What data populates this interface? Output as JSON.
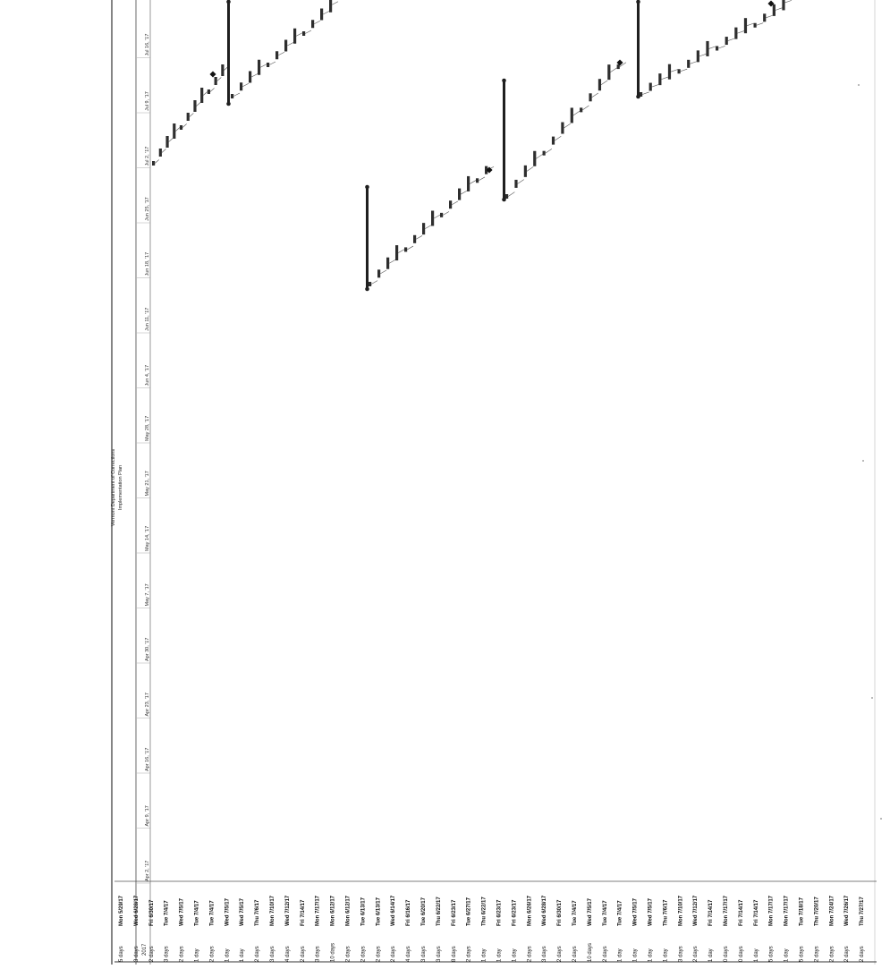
{
  "header": {
    "title_line1": "Vermont Department of Corrections",
    "title_line2": "Implementation Plan",
    "corner_label": "2017"
  },
  "timescale": [
    "Apr 2, '17",
    "Apr 9, '17",
    "Apr 16, '17",
    "Apr 23, '17",
    "Apr 30, '17",
    "May 7, '17",
    "May 14, '17",
    "May 21, '17",
    "May 28, '17",
    "Jun 4, '17",
    "Jun 11, '17",
    "Jun 18, '17",
    "Jun 25, '17",
    "Jul 2, '17",
    "Jul 9, '17",
    "Jul 16, '17"
  ],
  "tasks": [
    {
      "duration": "5 days",
      "start": "Mon 5/29/17"
    },
    {
      "duration": "3 days",
      "start": "Wed 6/28/17"
    },
    {
      "duration": "2 days",
      "start": "Fri 6/30/17"
    },
    {
      "duration": "3 days",
      "start": "Tue 7/4/17"
    },
    {
      "duration": "2 days",
      "start": "Wed 7/5/17"
    },
    {
      "duration": "1 day",
      "start": "Tue 7/4/17"
    },
    {
      "duration": "2 days",
      "start": "Tue 7/4/17"
    },
    {
      "duration": "1 day",
      "start": "Wed 7/5/17"
    },
    {
      "duration": "1 day",
      "start": "Wed 7/5/17"
    },
    {
      "duration": "2 days",
      "start": "Thu 7/6/17"
    },
    {
      "duration": "3 days",
      "start": "Mon 7/10/17"
    },
    {
      "duration": "4 days",
      "start": "Wed 7/12/17"
    },
    {
      "duration": "2 days",
      "start": "Fri 7/14/17"
    },
    {
      "duration": "3 days",
      "start": "Mon 7/17/17"
    },
    {
      "duration": "10 days",
      "start": "Mon 6/12/17"
    },
    {
      "duration": "2 days",
      "start": "Mon 6/12/17"
    },
    {
      "duration": "2 days",
      "start": "Tue 6/13/17"
    },
    {
      "duration": "2 days",
      "start": "Tue 6/13/17"
    },
    {
      "duration": "2 days",
      "start": "Wed 6/14/17"
    },
    {
      "duration": "4 days",
      "start": "Fri 6/16/17"
    },
    {
      "duration": "3 days",
      "start": "Tue 6/20/17"
    },
    {
      "duration": "3 days",
      "start": "Thu 6/22/17"
    },
    {
      "duration": "8 days",
      "start": "Fri 6/23/17"
    },
    {
      "duration": "2 days",
      "start": "Tue 6/27/17"
    },
    {
      "duration": "1 day",
      "start": "Thu 6/22/17"
    },
    {
      "duration": "1 day",
      "start": "Fri 6/23/17"
    },
    {
      "duration": "1 day",
      "start": "Fri 6/23/17"
    },
    {
      "duration": "2 days",
      "start": "Mon 6/26/17"
    },
    {
      "duration": "3 days",
      "start": "Wed 6/28/17"
    },
    {
      "duration": "2 days",
      "start": "Fri 6/30/17"
    },
    {
      "duration": "2 days",
      "start": "Tue 7/4/17"
    },
    {
      "duration": "10 days",
      "start": "Wed 7/5/17"
    },
    {
      "duration": "2 days",
      "start": "Tue 7/4/17"
    },
    {
      "duration": "1 day",
      "start": "Tue 7/4/17"
    },
    {
      "duration": "1 day",
      "start": "Wed 7/5/17"
    },
    {
      "duration": "1 day",
      "start": "Wed 7/5/17"
    },
    {
      "duration": "1 day",
      "start": "Thu 7/6/17"
    },
    {
      "duration": "3 days",
      "start": "Mon 7/10/17"
    },
    {
      "duration": "2 days",
      "start": "Wed 7/12/17"
    },
    {
      "duration": "1 day",
      "start": "Fri 7/14/17"
    },
    {
      "duration": "0 days",
      "start": "Mon 7/17/17"
    },
    {
      "duration": "0 days",
      "start": "Fri 7/14/17"
    },
    {
      "duration": "1 day",
      "start": "Fri 7/14/17"
    },
    {
      "duration": "5 days",
      "start": "Mon 7/17/17"
    },
    {
      "duration": "1 day",
      "start": "Mon 7/17/17"
    },
    {
      "duration": "5 days",
      "start": "Tue 7/18/17"
    },
    {
      "duration": "2 days",
      "start": "Thu 7/20/17"
    },
    {
      "duration": "2 days",
      "start": "Mon 7/24/17"
    },
    {
      "duration": "2 days",
      "start": "Wed 7/26/17"
    },
    {
      "duration": "2 days",
      "start": "Thu 7/27/17"
    }
  ]
}
